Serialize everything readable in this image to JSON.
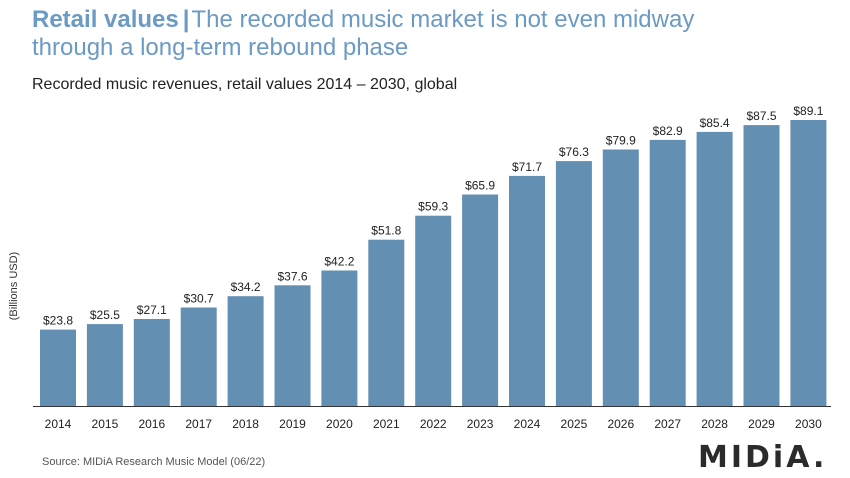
{
  "header": {
    "title_bold": "Retail values",
    "title_sep": "|",
    "title_line1": "The recorded music market is not even midway",
    "title_line2": "through a long-term rebound phase",
    "subtitle": "Recorded music revenues, retail values 2014 – 2030, global"
  },
  "footer": {
    "source": "Source: MIDiA Research Music Model (06/22)",
    "logo": "MIDiA."
  },
  "colors": {
    "bar": "#6390b2",
    "title": "#6b9ac4",
    "axis": "#333333"
  },
  "chart_data": {
    "type": "bar",
    "ylabel": "(Billions USD)",
    "xlabel": "",
    "categories": [
      "2014",
      "2015",
      "2016",
      "2017",
      "2018",
      "2019",
      "2020",
      "2021",
      "2022",
      "2023",
      "2024",
      "2025",
      "2026",
      "2027",
      "2028",
      "2029",
      "2030"
    ],
    "values": [
      23.8,
      25.5,
      27.1,
      30.7,
      34.2,
      37.6,
      42.2,
      51.8,
      59.3,
      65.9,
      71.7,
      76.3,
      79.9,
      82.9,
      85.4,
      87.5,
      89.1
    ],
    "value_labels": [
      "$23.8",
      "$25.5",
      "$27.1",
      "$30.7",
      "$34.2",
      "$37.6",
      "$42.2",
      "$51.8",
      "$59.3",
      "$65.9",
      "$71.7",
      "$76.3",
      "$79.9",
      "$82.9",
      "$85.4",
      "$87.5",
      "$89.1"
    ],
    "ylim": [
      0,
      89.1
    ],
    "grid": false,
    "legend": "none"
  }
}
